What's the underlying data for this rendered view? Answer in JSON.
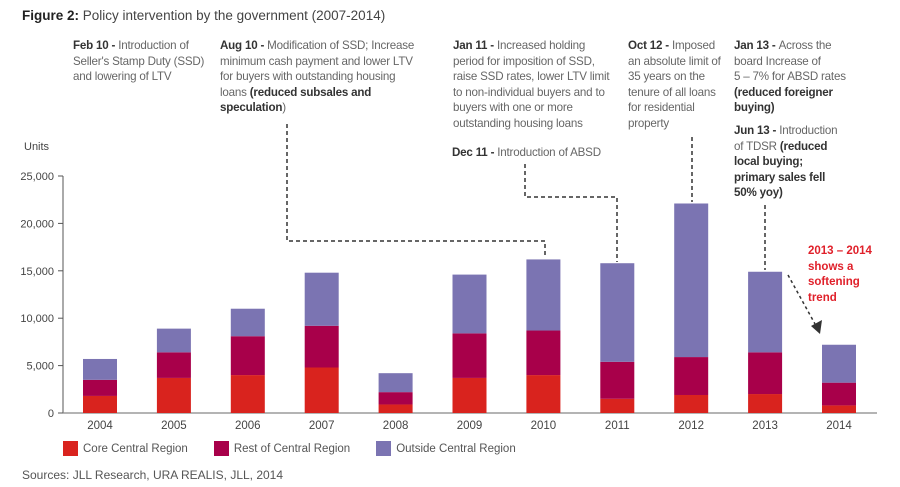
{
  "figure": {
    "label": "Figure 2:",
    "title": "Policy intervention by the government (2007-2014)"
  },
  "annotations": {
    "feb10": {
      "date": "Feb 10 - ",
      "lines": [
        "Introduction of",
        "Seller's Stamp Duty (SSD)",
        "and lowering of LTV"
      ]
    },
    "aug10": {
      "date": "Aug 10 - ",
      "text1": "Modification of SSD; Increase",
      "text2": "minimum cash payment and lower LTV",
      "text3": "for buyers with outstanding housing",
      "text4": "loans ",
      "bold1": "(reduced subsales and",
      "bold2": "speculation",
      "tail": ")"
    },
    "jan11": {
      "date": "Jan 11 - ",
      "text1": "Increased holding",
      "text2": "period for imposition of SSD,",
      "text3": "raise SSD rates, lower LTV limit",
      "text4": "to non-individual buyers and to",
      "text5": "buyers with one or more",
      "text6": "outstanding housing loans"
    },
    "dec11": {
      "date": "Dec 11 - ",
      "text": "Introduction of ABSD"
    },
    "oct12": {
      "date": "Oct 12 - ",
      "text1": "Imposed",
      "text2": "an absolute limit of",
      "text3": "35 years on the",
      "text4": "tenure of all loans",
      "text5": "for residential",
      "text6": "property"
    },
    "jan13": {
      "date": "Jan 13 - ",
      "text1": "Across the",
      "text2": "board Increase of",
      "text3": "5 – 7% for ABSD rates",
      "bold1": "(reduced foreigner",
      "bold2": "buying)"
    },
    "jun13": {
      "date": "Jun 13 - ",
      "text1": "Introduction",
      "text2": "of TDSR ",
      "bold1": "(reduced",
      "bold2": "local buying;",
      "bold3": "primary sales fell",
      "bold4": "50% yoy)"
    },
    "trend": {
      "line1": "2013 – 2014",
      "line2": "shows a",
      "line3": "softening",
      "line4": "trend"
    }
  },
  "source": "Sources: JLL Research, URA REALIS, JLL, 2014",
  "chart_data": {
    "type": "bar",
    "stacked": true,
    "title": "Policy intervention by the government (2007-2014)",
    "xlabel": "",
    "ylabel": "Units",
    "ylim": [
      0,
      25000
    ],
    "yticks": [
      0,
      5000,
      10000,
      15000,
      20000,
      25000
    ],
    "ytick_labels": [
      "0",
      "5,000",
      "10,000",
      "15,000",
      "20,000",
      "25,000"
    ],
    "grid": false,
    "legend_position": "bottom",
    "categories": [
      "2004",
      "2005",
      "2006",
      "2007",
      "2008",
      "2009",
      "2010",
      "2011",
      "2012",
      "2013",
      "2014"
    ],
    "series": [
      {
        "name": "Core Central Region",
        "color": "#D9231E",
        "values": [
          1800,
          3700,
          4000,
          4800,
          900,
          3700,
          4000,
          1500,
          1900,
          2000,
          800
        ]
      },
      {
        "name": "Rest of Central Region",
        "color": "#A8004A",
        "values": [
          1700,
          2700,
          4100,
          4400,
          1300,
          4700,
          4700,
          3900,
          4000,
          4400,
          2400
        ]
      },
      {
        "name": "Outside Central Region",
        "color": "#7B74B2",
        "values": [
          2200,
          2500,
          2900,
          5600,
          2000,
          6200,
          7500,
          10400,
          16200,
          8500,
          4000
        ]
      }
    ]
  }
}
